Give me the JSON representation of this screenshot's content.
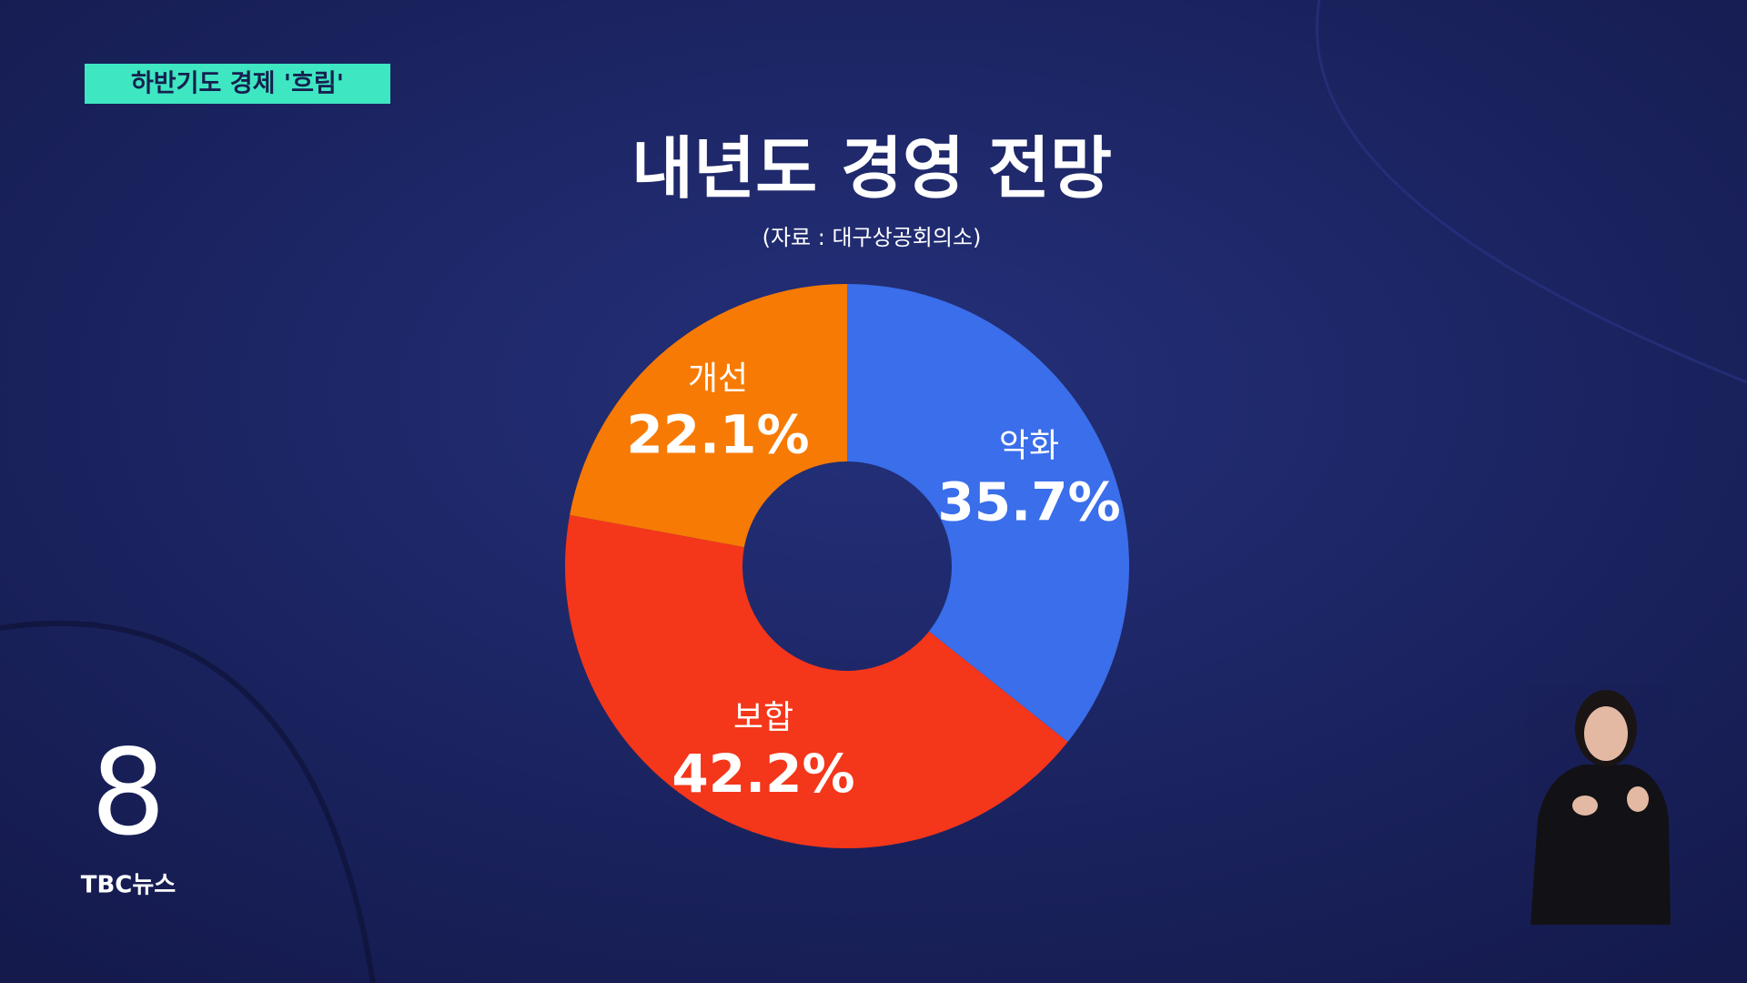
{
  "broadcast": {
    "tag": "하반기도 경제 '흐림'",
    "logo": "8",
    "channel": "TBC뉴스"
  },
  "chart_data": {
    "type": "pie",
    "donut": true,
    "title": "내년도 경영 전망",
    "subtitle": "(자료 : 대구상공회의소)",
    "categories": [
      "악화",
      "보합",
      "개선"
    ],
    "values": [
      35.7,
      42.2,
      22.1
    ],
    "value_labels": [
      "35.7%",
      "42.2%",
      "22.1%"
    ],
    "colors": [
      "#3a6eea",
      "#f4361a",
      "#f77a04"
    ]
  }
}
